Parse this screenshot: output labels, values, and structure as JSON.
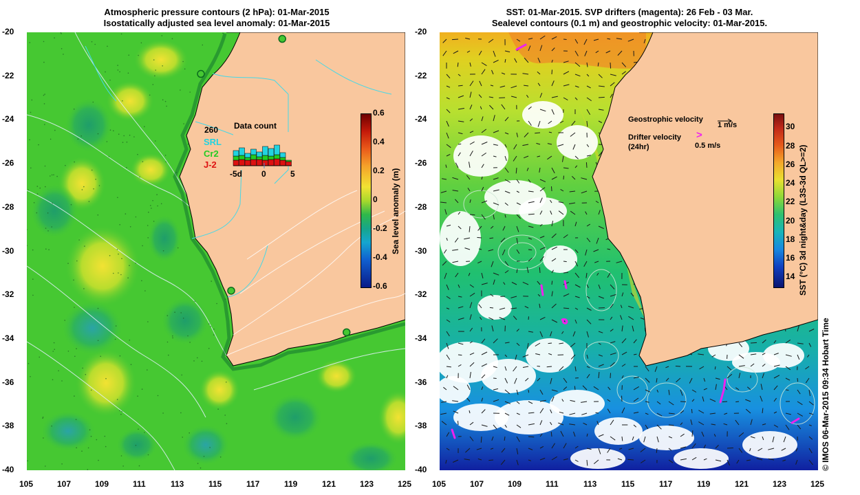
{
  "left_panel": {
    "title_line1": "Atmospheric pressure contours (2 hPa): 01-Mar-2015",
    "title_line2": "Isostatically adjusted sea level anomaly: 01-Mar-2015",
    "colorbar": {
      "label": "Sea level anomaly (m)",
      "ticks": [
        "0.6",
        "0.4",
        "0.2",
        "0",
        "-0.2",
        "-0.4",
        "-0.6"
      ],
      "range": [
        -0.6,
        0.6
      ]
    },
    "inset": {
      "title": "Data count",
      "max_count": "260",
      "series": [
        {
          "name": "SRL",
          "color": "#22d3e0"
        },
        {
          "name": "Cr2",
          "color": "#22cc22"
        },
        {
          "name": "J-2",
          "color": "#dd1111"
        }
      ],
      "x_ticks": [
        "-5d",
        "0",
        "5"
      ]
    },
    "stations": [
      {
        "lon": 114.2,
        "lat": -21.9
      },
      {
        "lon": 118.5,
        "lat": -20.3
      },
      {
        "lon": 115.8,
        "lat": -31.8
      },
      {
        "lon": 121.9,
        "lat": -33.7
      }
    ]
  },
  "right_panel": {
    "title_line1": "SST: 01-Mar-2015. SVP drifters (magenta): 26 Feb - 03 Mar.",
    "title_line2": "Sealevel contours (0.1 m) and geostrophic velocity: 01-Mar-2015.",
    "colorbar": {
      "label": "SST (°C) 3d night&day (L3S-3d QL>=2)",
      "ticks": [
        "30",
        "28",
        "26",
        "24",
        "22",
        "20",
        "18",
        "16",
        "14"
      ],
      "range": [
        13,
        31.5
      ]
    },
    "legend": {
      "geostrophic_label": "Geostrophic velocity",
      "geostrophic_scale": "1 m/s",
      "drifter_label_1": "Drifter velocity",
      "drifter_label_2": "(24hr)",
      "drifter_scale": "0.5 m/s",
      "drifter_symbol": ">"
    }
  },
  "axes": {
    "x_ticks": [
      "105",
      "107",
      "109",
      "111",
      "113",
      "115",
      "117",
      "119",
      "121",
      "123",
      "125"
    ],
    "y_ticks": [
      "-20",
      "-22",
      "-24",
      "-26",
      "-28",
      "-30",
      "-32",
      "-34",
      "-36",
      "-38",
      "-40"
    ],
    "lon_range": [
      105,
      125
    ],
    "lat_range": [
      -40,
      -20
    ]
  },
  "credit": "© IMOS 06-Mar-2015 09:34 Hobart Time",
  "colors": {
    "land": "#f9c79e",
    "sla_green": "#46c832",
    "drifter": "#ee22ee",
    "coast": "#000000"
  }
}
